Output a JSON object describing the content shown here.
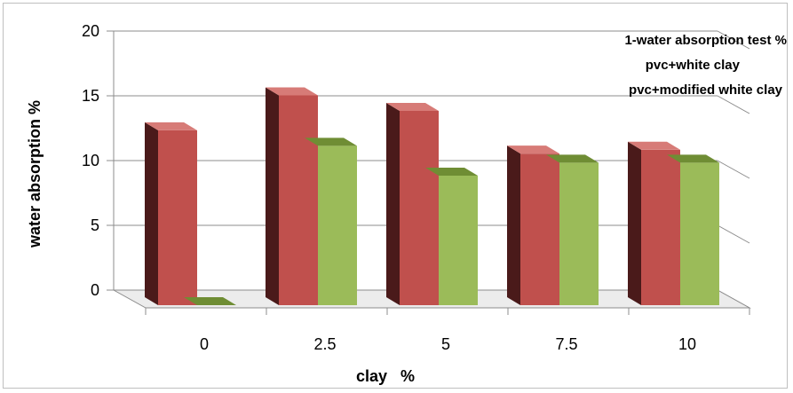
{
  "chart_data": {
    "type": "bar",
    "style": "3d-clustered-column",
    "title": "",
    "xlabel": "clay   %",
    "ylabel": "water absorption %",
    "categories": [
      "0",
      "2.5",
      "5",
      "7.5",
      "10"
    ],
    "ylim": [
      0,
      20
    ],
    "yticks": [
      "0",
      "5",
      "10",
      "15",
      "20"
    ],
    "grid": true,
    "legend": {
      "placement": "top-right",
      "heading": "1-water absorption test %",
      "heading_color": "#000000"
    },
    "series": [
      {
        "name": "pvc+white clay",
        "color": "#c0504d",
        "values": [
          13.5,
          16.2,
          15.0,
          11.7,
          12.0
        ]
      },
      {
        "name": "pvc+modified white clay",
        "color": "#9bbb59",
        "values": [
          0,
          12.3,
          10.0,
          11.0,
          11.0
        ]
      }
    ]
  }
}
